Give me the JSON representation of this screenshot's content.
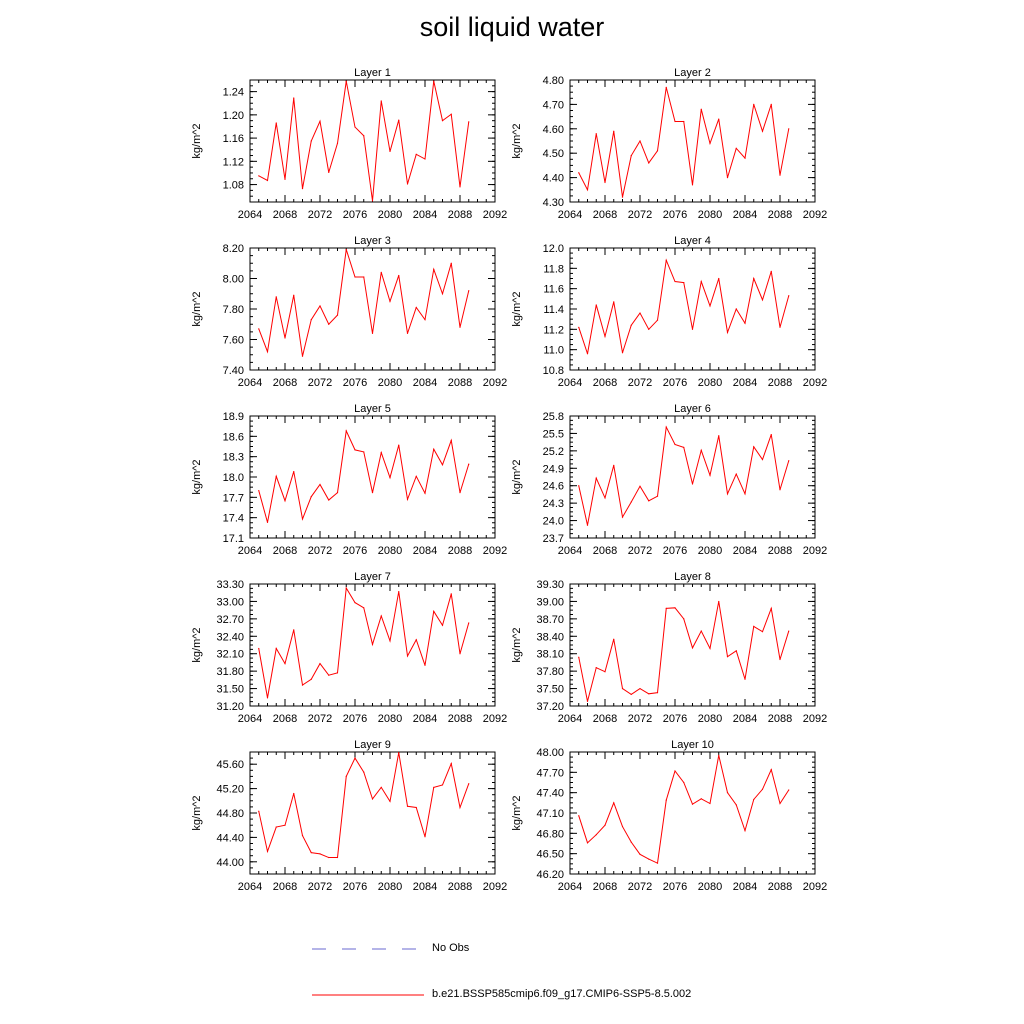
{
  "title": "soil liquid water",
  "colors": {
    "model_line": "#ff0000",
    "obs_line": "#6a6ad0",
    "axes": "#000000"
  },
  "legend": {
    "obs_label": "No Obs",
    "model_label": "b.e21.BSSP585cmip6.f09_g17.CMIP6-SSP5-8.5.002"
  },
  "chart_data": [
    {
      "type": "line",
      "title": "Layer 1",
      "xlabel": "",
      "ylabel": "kg/m^2",
      "xlim": [
        2064,
        2092
      ],
      "ylim": [
        1.05,
        1.26
      ],
      "xticks": [
        2064,
        2068,
        2072,
        2076,
        2080,
        2084,
        2088,
        2092
      ],
      "xtick_labels": [
        "2064",
        "2068",
        "2072",
        "2076",
        "2080",
        "2084",
        "2088",
        "2092"
      ],
      "yticks": [
        1.08,
        1.12,
        1.16,
        1.2,
        1.24
      ],
      "ytick_labels": [
        "1.08",
        "1.12",
        "1.16",
        "1.20",
        "1.24"
      ],
      "grid": false,
      "x": [
        2065,
        2066,
        2067,
        2068,
        2069,
        2070,
        2071,
        2072,
        2073,
        2074,
        2075,
        2076,
        2077,
        2078,
        2079,
        2080,
        2081,
        2082,
        2083,
        2084,
        2085,
        2086,
        2087,
        2088,
        2089
      ],
      "series": [
        {
          "values": [
            1.095,
            1.087,
            1.186,
            1.089,
            1.229,
            1.073,
            1.155,
            1.189,
            1.101,
            1.151,
            1.258,
            1.179,
            1.164,
            1.052,
            1.224,
            1.137,
            1.191,
            1.081,
            1.132,
            1.124,
            1.258,
            1.19,
            1.201,
            1.076,
            1.188
          ]
        }
      ]
    },
    {
      "type": "line",
      "title": "Layer 2",
      "xlabel": "",
      "ylabel": "kg/m^2",
      "xlim": [
        2064,
        2092
      ],
      "ylim": [
        4.3,
        4.8
      ],
      "xticks": [
        2064,
        2068,
        2072,
        2076,
        2080,
        2084,
        2088,
        2092
      ],
      "xtick_labels": [
        "2064",
        "2068",
        "2072",
        "2076",
        "2080",
        "2084",
        "2088",
        "2092"
      ],
      "yticks": [
        4.3,
        4.4,
        4.5,
        4.6,
        4.7,
        4.8
      ],
      "ytick_labels": [
        "4.30",
        "4.40",
        "4.50",
        "4.60",
        "4.70",
        "4.80"
      ],
      "grid": false,
      "x": [
        2065,
        2066,
        2067,
        2068,
        2069,
        2070,
        2071,
        2072,
        2073,
        2074,
        2075,
        2076,
        2077,
        2078,
        2079,
        2080,
        2081,
        2082,
        2083,
        2084,
        2085,
        2086,
        2087,
        2088,
        2089
      ],
      "series": [
        {
          "values": [
            4.42,
            4.35,
            4.58,
            4.38,
            4.59,
            4.32,
            4.49,
            4.55,
            4.46,
            4.51,
            4.77,
            4.63,
            4.63,
            4.37,
            4.68,
            4.54,
            4.64,
            4.4,
            4.52,
            4.48,
            4.7,
            4.59,
            4.7,
            4.41,
            4.6
          ]
        }
      ]
    },
    {
      "type": "line",
      "title": "Layer 3",
      "xlabel": "",
      "ylabel": "kg/m^2",
      "xlim": [
        2064,
        2092
      ],
      "ylim": [
        7.4,
        8.2
      ],
      "xticks": [
        2064,
        2068,
        2072,
        2076,
        2080,
        2084,
        2088,
        2092
      ],
      "xtick_labels": [
        "2064",
        "2068",
        "2072",
        "2076",
        "2080",
        "2084",
        "2088",
        "2092"
      ],
      "yticks": [
        7.4,
        7.6,
        7.8,
        8.0,
        8.2
      ],
      "ytick_labels": [
        "7.40",
        "7.60",
        "7.80",
        "8.00",
        "8.20"
      ],
      "grid": false,
      "x": [
        2065,
        2066,
        2067,
        2068,
        2069,
        2070,
        2071,
        2072,
        2073,
        2074,
        2075,
        2076,
        2077,
        2078,
        2079,
        2080,
        2081,
        2082,
        2083,
        2084,
        2085,
        2086,
        2087,
        2088,
        2089
      ],
      "series": [
        {
          "values": [
            7.67,
            7.52,
            7.88,
            7.61,
            7.89,
            7.49,
            7.73,
            7.82,
            7.7,
            7.76,
            8.19,
            8.01,
            8.01,
            7.64,
            8.04,
            7.85,
            8.02,
            7.64,
            7.81,
            7.73,
            8.06,
            7.9,
            8.1,
            7.68,
            7.92
          ]
        }
      ]
    },
    {
      "type": "line",
      "title": "Layer 4",
      "xlabel": "",
      "ylabel": "kg/m^2",
      "xlim": [
        2064,
        2092
      ],
      "ylim": [
        10.8,
        12.0
      ],
      "xticks": [
        2064,
        2068,
        2072,
        2076,
        2080,
        2084,
        2088,
        2092
      ],
      "xtick_labels": [
        "2064",
        "2068",
        "2072",
        "2076",
        "2080",
        "2084",
        "2088",
        "2092"
      ],
      "yticks": [
        10.8,
        11.0,
        11.2,
        11.4,
        11.6,
        11.8,
        12.0
      ],
      "ytick_labels": [
        "10.8",
        "11.0",
        "11.2",
        "11.4",
        "11.6",
        "11.8",
        "12.0"
      ],
      "grid": false,
      "x": [
        2065,
        2066,
        2067,
        2068,
        2069,
        2070,
        2071,
        2072,
        2073,
        2074,
        2075,
        2076,
        2077,
        2078,
        2079,
        2080,
        2081,
        2082,
        2083,
        2084,
        2085,
        2086,
        2087,
        2088,
        2089
      ],
      "series": [
        {
          "values": [
            11.22,
            10.96,
            11.44,
            11.13,
            11.47,
            10.97,
            11.24,
            11.36,
            11.2,
            11.29,
            11.88,
            11.67,
            11.66,
            11.2,
            11.67,
            11.43,
            11.7,
            11.17,
            11.4,
            11.26,
            11.7,
            11.49,
            11.77,
            11.22,
            11.53
          ]
        }
      ]
    },
    {
      "type": "line",
      "title": "Layer 5",
      "xlabel": "",
      "ylabel": "kg/m^2",
      "xlim": [
        2064,
        2092
      ],
      "ylim": [
        17.1,
        18.9
      ],
      "xticks": [
        2064,
        2068,
        2072,
        2076,
        2080,
        2084,
        2088,
        2092
      ],
      "xtick_labels": [
        "2064",
        "2068",
        "2072",
        "2076",
        "2080",
        "2084",
        "2088",
        "2092"
      ],
      "yticks": [
        17.1,
        17.4,
        17.7,
        18.0,
        18.3,
        18.6,
        18.9
      ],
      "ytick_labels": [
        "17.1",
        "17.4",
        "17.7",
        "18.0",
        "18.3",
        "18.6",
        "18.9"
      ],
      "grid": false,
      "x": [
        2065,
        2066,
        2067,
        2068,
        2069,
        2070,
        2071,
        2072,
        2073,
        2074,
        2075,
        2076,
        2077,
        2078,
        2079,
        2080,
        2081,
        2082,
        2083,
        2084,
        2085,
        2086,
        2087,
        2088,
        2089
      ],
      "series": [
        {
          "values": [
            17.8,
            17.33,
            18.01,
            17.65,
            18.08,
            17.38,
            17.71,
            17.89,
            17.66,
            17.77,
            18.68,
            18.4,
            18.37,
            17.77,
            18.36,
            17.99,
            18.47,
            17.67,
            18.01,
            17.76,
            18.41,
            18.18,
            18.54,
            17.77,
            18.19
          ]
        }
      ]
    },
    {
      "type": "line",
      "title": "Layer 6",
      "xlabel": "",
      "ylabel": "kg/m^2",
      "xlim": [
        2064,
        2092
      ],
      "ylim": [
        23.7,
        25.8
      ],
      "xticks": [
        2064,
        2068,
        2072,
        2076,
        2080,
        2084,
        2088,
        2092
      ],
      "xtick_labels": [
        "2064",
        "2068",
        "2072",
        "2076",
        "2080",
        "2084",
        "2088",
        "2092"
      ],
      "yticks": [
        23.7,
        24.0,
        24.3,
        24.6,
        24.9,
        25.2,
        25.5,
        25.8
      ],
      "ytick_labels": [
        "23.7",
        "24.0",
        "24.3",
        "24.6",
        "24.9",
        "25.2",
        "25.5",
        "25.8"
      ],
      "grid": false,
      "x": [
        2065,
        2066,
        2067,
        2068,
        2069,
        2070,
        2071,
        2072,
        2073,
        2074,
        2075,
        2076,
        2077,
        2078,
        2079,
        2080,
        2081,
        2082,
        2083,
        2084,
        2085,
        2086,
        2087,
        2088,
        2089
      ],
      "series": [
        {
          "values": [
            24.6,
            23.92,
            24.73,
            24.39,
            24.95,
            24.06,
            24.32,
            24.59,
            24.34,
            24.42,
            25.61,
            25.31,
            25.26,
            24.63,
            25.21,
            24.78,
            25.46,
            24.46,
            24.8,
            24.46,
            25.27,
            25.05,
            25.48,
            24.53,
            25.03
          ]
        }
      ]
    },
    {
      "type": "line",
      "title": "Layer 7",
      "xlabel": "",
      "ylabel": "kg/m^2",
      "xlim": [
        2064,
        2092
      ],
      "ylim": [
        31.2,
        33.3
      ],
      "xticks": [
        2064,
        2068,
        2072,
        2076,
        2080,
        2084,
        2088,
        2092
      ],
      "xtick_labels": [
        "2064",
        "2068",
        "2072",
        "2076",
        "2080",
        "2084",
        "2088",
        "2092"
      ],
      "yticks": [
        31.2,
        31.5,
        31.8,
        32.1,
        32.4,
        32.7,
        33.0,
        33.3
      ],
      "ytick_labels": [
        "31.20",
        "31.50",
        "31.80",
        "32.10",
        "32.40",
        "32.70",
        "33.00",
        "33.30"
      ],
      "grid": false,
      "x": [
        2065,
        2066,
        2067,
        2068,
        2069,
        2070,
        2071,
        2072,
        2073,
        2074,
        2075,
        2076,
        2077,
        2078,
        2079,
        2080,
        2081,
        2082,
        2083,
        2084,
        2085,
        2086,
        2087,
        2088,
        2089
      ],
      "series": [
        {
          "values": [
            32.19,
            31.34,
            32.19,
            31.93,
            32.51,
            31.56,
            31.66,
            31.93,
            31.73,
            31.77,
            33.23,
            32.98,
            32.89,
            32.26,
            32.75,
            32.32,
            33.17,
            32.06,
            32.34,
            31.9,
            32.83,
            32.59,
            33.13,
            32.1,
            32.63
          ]
        }
      ]
    },
    {
      "type": "line",
      "title": "Layer 8",
      "xlabel": "",
      "ylabel": "kg/m^2",
      "xlim": [
        2064,
        2092
      ],
      "ylim": [
        37.2,
        39.3
      ],
      "xticks": [
        2064,
        2068,
        2072,
        2076,
        2080,
        2084,
        2088,
        2092
      ],
      "xtick_labels": [
        "2064",
        "2068",
        "2072",
        "2076",
        "2080",
        "2084",
        "2088",
        "2092"
      ],
      "yticks": [
        37.2,
        37.5,
        37.8,
        38.1,
        38.4,
        38.7,
        39.0,
        39.3
      ],
      "ytick_labels": [
        "37.20",
        "37.50",
        "37.80",
        "38.10",
        "38.40",
        "38.70",
        "39.00",
        "39.30"
      ],
      "grid": false,
      "x": [
        2065,
        2066,
        2067,
        2068,
        2069,
        2070,
        2071,
        2072,
        2073,
        2074,
        2075,
        2076,
        2077,
        2078,
        2079,
        2080,
        2081,
        2082,
        2083,
        2084,
        2085,
        2086,
        2087,
        2088,
        2089
      ],
      "series": [
        {
          "values": [
            38.04,
            37.28,
            37.86,
            37.79,
            38.35,
            37.5,
            37.4,
            37.5,
            37.41,
            37.43,
            38.88,
            38.89,
            38.7,
            38.2,
            38.49,
            38.19,
            39.0,
            38.05,
            38.15,
            37.66,
            38.57,
            38.48,
            38.88,
            38.0,
            38.49
          ]
        }
      ]
    },
    {
      "type": "line",
      "title": "Layer 9",
      "xlabel": "",
      "ylabel": "kg/m^2",
      "xlim": [
        2064,
        2092
      ],
      "ylim": [
        43.8,
        45.8
      ],
      "xticks": [
        2064,
        2068,
        2072,
        2076,
        2080,
        2084,
        2088,
        2092
      ],
      "xtick_labels": [
        "2064",
        "2068",
        "2072",
        "2076",
        "2080",
        "2084",
        "2088",
        "2092"
      ],
      "yticks": [
        44.0,
        44.4,
        44.8,
        45.2,
        45.6
      ],
      "ytick_labels": [
        "44.00",
        "44.40",
        "44.80",
        "45.20",
        "45.60"
      ],
      "grid": false,
      "x": [
        2065,
        2066,
        2067,
        2068,
        2069,
        2070,
        2071,
        2072,
        2073,
        2074,
        2075,
        2076,
        2077,
        2078,
        2079,
        2080,
        2081,
        2082,
        2083,
        2084,
        2085,
        2086,
        2087,
        2088,
        2089
      ],
      "series": [
        {
          "values": [
            44.83,
            44.17,
            44.57,
            44.6,
            45.12,
            44.43,
            44.15,
            44.13,
            44.07,
            44.07,
            45.4,
            45.7,
            45.47,
            45.03,
            45.22,
            44.99,
            45.79,
            44.91,
            44.89,
            44.41,
            45.22,
            45.26,
            45.61,
            44.89,
            45.28
          ]
        }
      ]
    },
    {
      "type": "line",
      "title": "Layer 10",
      "xlabel": "",
      "ylabel": "kg/m^2",
      "xlim": [
        2064,
        2092
      ],
      "ylim": [
        46.2,
        48.0
      ],
      "xticks": [
        2064,
        2068,
        2072,
        2076,
        2080,
        2084,
        2088,
        2092
      ],
      "xtick_labels": [
        "2064",
        "2068",
        "2072",
        "2076",
        "2080",
        "2084",
        "2088",
        "2092"
      ],
      "yticks": [
        46.2,
        46.5,
        46.8,
        47.1,
        47.4,
        47.7,
        48.0
      ],
      "ytick_labels": [
        "46.20",
        "46.50",
        "46.80",
        "47.10",
        "47.40",
        "47.70",
        "48.00"
      ],
      "grid": false,
      "x": [
        2065,
        2066,
        2067,
        2068,
        2069,
        2070,
        2071,
        2072,
        2073,
        2074,
        2075,
        2076,
        2077,
        2078,
        2079,
        2080,
        2081,
        2082,
        2083,
        2084,
        2085,
        2086,
        2087,
        2088,
        2089
      ],
      "series": [
        {
          "values": [
            47.06,
            46.66,
            46.78,
            46.92,
            47.25,
            46.9,
            46.67,
            46.49,
            46.42,
            46.36,
            47.29,
            47.72,
            47.55,
            47.23,
            47.31,
            47.24,
            47.95,
            47.4,
            47.22,
            46.84,
            47.3,
            47.45,
            47.74,
            47.24,
            47.44
          ]
        }
      ]
    }
  ]
}
